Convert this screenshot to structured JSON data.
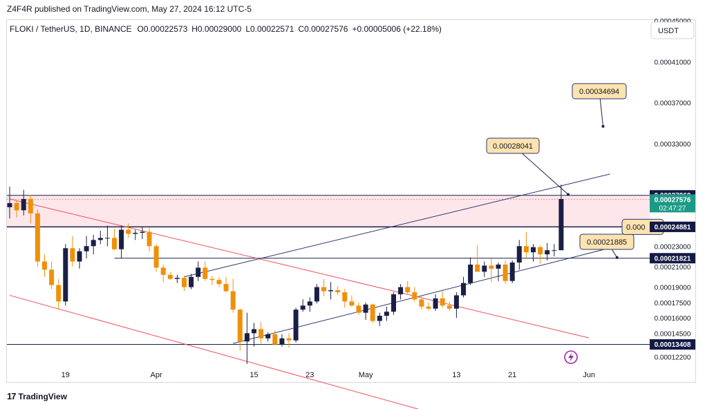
{
  "header": {
    "published_by": "Z4F4R published on TradingView.com, May 27, 2024 16:12 UTC-5"
  },
  "footer": {
    "logo_text": "TradingView"
  },
  "colors": {
    "bull": "#1a1f46",
    "bear": "#f0900a",
    "channel": "#2c3470",
    "down_channel": "#ef4e5a"
  },
  "chart_data": {
    "type": "candlestick",
    "symbol_line": {
      "name": "FLOKI / TetherUS, 1D, BINANCE",
      "open": "O0.00022573",
      "high": "H0.00029000",
      "low": "L0.00022571",
      "close": "C0.00027576",
      "change": "+0.00005006 (+22.18%)"
    },
    "currency_button": "USDT",
    "x_ticks": [
      {
        "label": "19",
        "index": 7
      },
      {
        "label": "Apr",
        "index": 20
      },
      {
        "label": "15",
        "index": 34
      },
      {
        "label": "23",
        "index": 42
      },
      {
        "label": "May",
        "index": 50
      },
      {
        "label": "13",
        "index": 63
      },
      {
        "label": "21",
        "index": 71
      },
      {
        "label": "Jun",
        "index": 82
      }
    ],
    "y_ticks": [
      "0.00045000",
      "0.00041000",
      "0.00037000",
      "0.00033000",
      "0.00023000",
      "0.00021000",
      "0.00019000",
      "0.00017500",
      "0.00016000",
      "0.00014500",
      "0.00012200"
    ],
    "ylim": [
      0.0001142,
      0.00045
    ],
    "price_labels": [
      {
        "text": "0.00027960",
        "value": 0.0002796
      },
      {
        "text": "0.00027576",
        "value": 0.00027576,
        "countdown": "02:47:27"
      },
      {
        "text": "0.00024881",
        "value": 0.00024881
      },
      {
        "text": "0.00021821",
        "value": 0.00021821
      },
      {
        "text": "0.00013408",
        "value": 0.00013408
      }
    ],
    "callouts": [
      {
        "text": "0.00034694",
        "value": 0.00034694
      },
      {
        "text": "0.00028041",
        "value": 0.00028041
      },
      {
        "text": "0.00021885",
        "value": 0.00021885
      },
      {
        "text": "0.000",
        "value": 0.00024881
      }
    ],
    "horizontal_levels": [
      0.0002796,
      0.00024881,
      0.00021821,
      0.00013408
    ],
    "resistance_zone": [
      0.00024881,
      0.0002796
    ],
    "candles": [
      {
        "o": 0.000268,
        "h": 0.000288,
        "l": 0.000257,
        "c": 0.000272
      },
      {
        "o": 0.000272,
        "h": 0.000274,
        "l": 0.000258,
        "c": 0.000265
      },
      {
        "o": 0.000265,
        "h": 0.000285,
        "l": 0.00026,
        "c": 0.000276
      },
      {
        "o": 0.000276,
        "h": 0.00028,
        "l": 0.000252,
        "c": 0.000262
      },
      {
        "o": 0.000262,
        "h": 0.000266,
        "l": 0.00021,
        "c": 0.000215
      },
      {
        "o": 0.000215,
        "h": 0.000222,
        "l": 0.0002,
        "c": 0.000207
      },
      {
        "o": 0.000207,
        "h": 0.000215,
        "l": 0.000188,
        "c": 0.000192
      },
      {
        "o": 0.000192,
        "h": 0.000198,
        "l": 0.000168,
        "c": 0.000176
      },
      {
        "o": 0.000176,
        "h": 0.000232,
        "l": 0.000172,
        "c": 0.000228
      },
      {
        "o": 0.000228,
        "h": 0.00024,
        "l": 0.00021,
        "c": 0.000215
      },
      {
        "o": 0.000215,
        "h": 0.000228,
        "l": 0.000208,
        "c": 0.000225
      },
      {
        "o": 0.000225,
        "h": 0.00024,
        "l": 0.000218,
        "c": 0.00023
      },
      {
        "o": 0.00023,
        "h": 0.000241,
        "l": 0.000222,
        "c": 0.000236
      },
      {
        "o": 0.000236,
        "h": 0.000245,
        "l": 0.000232,
        "c": 0.000238
      },
      {
        "o": 0.000238,
        "h": 0.00025,
        "l": 0.00023,
        "c": 0.000238
      },
      {
        "o": 0.000238,
        "h": 0.000247,
        "l": 0.000226,
        "c": 0.000227
      },
      {
        "o": 0.000227,
        "h": 0.00025,
        "l": 0.000218,
        "c": 0.000246
      },
      {
        "o": 0.000246,
        "h": 0.000252,
        "l": 0.000238,
        "c": 0.000242
      },
      {
        "o": 0.000242,
        "h": 0.000246,
        "l": 0.000236,
        "c": 0.000243
      },
      {
        "o": 0.000243,
        "h": 0.000249,
        "l": 0.000237,
        "c": 0.000244
      },
      {
        "o": 0.000244,
        "h": 0.000248,
        "l": 0.000225,
        "c": 0.00023
      },
      {
        "o": 0.00023,
        "h": 0.000232,
        "l": 0.000205,
        "c": 0.000209
      },
      {
        "o": 0.000209,
        "h": 0.000212,
        "l": 0.000195,
        "c": 0.000202
      },
      {
        "o": 0.000202,
        "h": 0.000205,
        "l": 0.000197,
        "c": 0.000198
      },
      {
        "o": 0.000198,
        "h": 0.000202,
        "l": 0.000194,
        "c": 0.000199
      },
      {
        "o": 0.000199,
        "h": 0.000201,
        "l": 0.000186,
        "c": 0.00019
      },
      {
        "o": 0.00019,
        "h": 0.000203,
        "l": 0.000188,
        "c": 0.0002
      },
      {
        "o": 0.0002,
        "h": 0.000215,
        "l": 0.000196,
        "c": 0.000209
      },
      {
        "o": 0.000209,
        "h": 0.000215,
        "l": 0.000196,
        "c": 0.000198
      },
      {
        "o": 0.000198,
        "h": 0.000201,
        "l": 0.000192,
        "c": 0.000197
      },
      {
        "o": 0.000197,
        "h": 0.0002,
        "l": 0.00019,
        "c": 0.000193
      },
      {
        "o": 0.000193,
        "h": 0.0002,
        "l": 0.000185,
        "c": 0.000186
      },
      {
        "o": 0.000186,
        "h": 0.000198,
        "l": 0.000165,
        "c": 0.000168
      },
      {
        "o": 0.000168,
        "h": 0.000169,
        "l": 0.000128,
        "c": 0.000137
      },
      {
        "o": 0.000137,
        "h": 0.000165,
        "l": 0.000115,
        "c": 0.000145
      },
      {
        "o": 0.000145,
        "h": 0.000155,
        "l": 0.000132,
        "c": 0.000149
      },
      {
        "o": 0.000149,
        "h": 0.000156,
        "l": 0.000135,
        "c": 0.00014
      },
      {
        "o": 0.00014,
        "h": 0.000146,
        "l": 0.000137,
        "c": 0.000144
      },
      {
        "o": 0.000144,
        "h": 0.000148,
        "l": 0.000133,
        "c": 0.000134
      },
      {
        "o": 0.000134,
        "h": 0.000144,
        "l": 0.000132,
        "c": 0.00014
      },
      {
        "o": 0.00014,
        "h": 0.000145,
        "l": 0.000131,
        "c": 0.000138
      },
      {
        "o": 0.000138,
        "h": 0.00017,
        "l": 0.000136,
        "c": 0.000168
      },
      {
        "o": 0.000168,
        "h": 0.000178,
        "l": 0.000166,
        "c": 0.000172
      },
      {
        "o": 0.000172,
        "h": 0.00018,
        "l": 0.000166,
        "c": 0.000176
      },
      {
        "o": 0.000176,
        "h": 0.000193,
        "l": 0.000174,
        "c": 0.00019
      },
      {
        "o": 0.00019,
        "h": 0.000198,
        "l": 0.000181,
        "c": 0.000186
      },
      {
        "o": 0.000186,
        "h": 0.000195,
        "l": 0.000178,
        "c": 0.000187
      },
      {
        "o": 0.000187,
        "h": 0.000191,
        "l": 0.000182,
        "c": 0.000185
      },
      {
        "o": 0.000185,
        "h": 0.000188,
        "l": 0.00017,
        "c": 0.000176
      },
      {
        "o": 0.000176,
        "h": 0.000182,
        "l": 0.000171,
        "c": 0.000172
      },
      {
        "o": 0.000172,
        "h": 0.000175,
        "l": 0.000163,
        "c": 0.000165
      },
      {
        "o": 0.000165,
        "h": 0.000175,
        "l": 0.000158,
        "c": 0.000173
      },
      {
        "o": 0.000173,
        "h": 0.000174,
        "l": 0.000155,
        "c": 0.000157
      },
      {
        "o": 0.000157,
        "h": 0.000165,
        "l": 0.000152,
        "c": 0.000162
      },
      {
        "o": 0.000162,
        "h": 0.000171,
        "l": 0.000157,
        "c": 0.000166
      },
      {
        "o": 0.000166,
        "h": 0.000185,
        "l": 0.000163,
        "c": 0.000183
      },
      {
        "o": 0.000183,
        "h": 0.000193,
        "l": 0.000178,
        "c": 0.00019
      },
      {
        "o": 0.00019,
        "h": 0.000196,
        "l": 0.000183,
        "c": 0.000185
      },
      {
        "o": 0.000185,
        "h": 0.00019,
        "l": 0.000176,
        "c": 0.000178
      },
      {
        "o": 0.000178,
        "h": 0.000181,
        "l": 0.000168,
        "c": 0.000171
      },
      {
        "o": 0.000171,
        "h": 0.000175,
        "l": 0.000167,
        "c": 0.000169
      },
      {
        "o": 0.000169,
        "h": 0.000183,
        "l": 0.000167,
        "c": 0.000179
      },
      {
        "o": 0.000179,
        "h": 0.000186,
        "l": 0.00017,
        "c": 0.000172
      },
      {
        "o": 0.000172,
        "h": 0.000176,
        "l": 0.000167,
        "c": 0.000169
      },
      {
        "o": 0.000169,
        "h": 0.000185,
        "l": 0.00016,
        "c": 0.000182
      },
      {
        "o": 0.000182,
        "h": 0.0002,
        "l": 0.00018,
        "c": 0.000194
      },
      {
        "o": 0.000194,
        "h": 0.000219,
        "l": 0.000192,
        "c": 0.000212
      },
      {
        "o": 0.000212,
        "h": 0.000231,
        "l": 0.000206,
        "c": 0.000205
      },
      {
        "o": 0.000205,
        "h": 0.000215,
        "l": 0.0002,
        "c": 0.000211
      },
      {
        "o": 0.000211,
        "h": 0.000218,
        "l": 0.000195,
        "c": 0.000208
      },
      {
        "o": 0.000208,
        "h": 0.000214,
        "l": 0.000196,
        "c": 0.000212
      },
      {
        "o": 0.000212,
        "h": 0.000216,
        "l": 0.000193,
        "c": 0.000196
      },
      {
        "o": 0.000196,
        "h": 0.000216,
        "l": 0.000194,
        "c": 0.000214
      },
      {
        "o": 0.000214,
        "h": 0.000236,
        "l": 0.000207,
        "c": 0.00023
      },
      {
        "o": 0.00023,
        "h": 0.000244,
        "l": 0.000219,
        "c": 0.000224
      },
      {
        "o": 0.000224,
        "h": 0.000232,
        "l": 0.000215,
        "c": 0.000229
      },
      {
        "o": 0.000229,
        "h": 0.000231,
        "l": 0.000213,
        "c": 0.000222
      },
      {
        "o": 0.000222,
        "h": 0.000233,
        "l": 0.000216,
        "c": 0.000226
      },
      {
        "o": 0.000226,
        "h": 0.000232,
        "l": 0.00022,
        "c": 0.000226
      },
      {
        "o": 0.000226,
        "h": 0.00029,
        "l": 0.000226,
        "c": 0.000276
      }
    ],
    "start_index": -1,
    "up_channel": {
      "upper": [
        [
          24,
          0.0002
        ],
        [
          72,
          0.000279
        ]
      ],
      "lower": [
        [
          31,
          0.000135
        ],
        [
          75,
          0.000211
        ]
      ]
    },
    "down_channel": {
      "upper": [
        [
          -1,
          0.000276
        ],
        [
          70,
          0.00016
        ]
      ],
      "lower": [
        [
          -1,
          0.000182
        ],
        [
          38,
          0.000108
        ]
      ]
    },
    "support_line_from_index": 14
  }
}
